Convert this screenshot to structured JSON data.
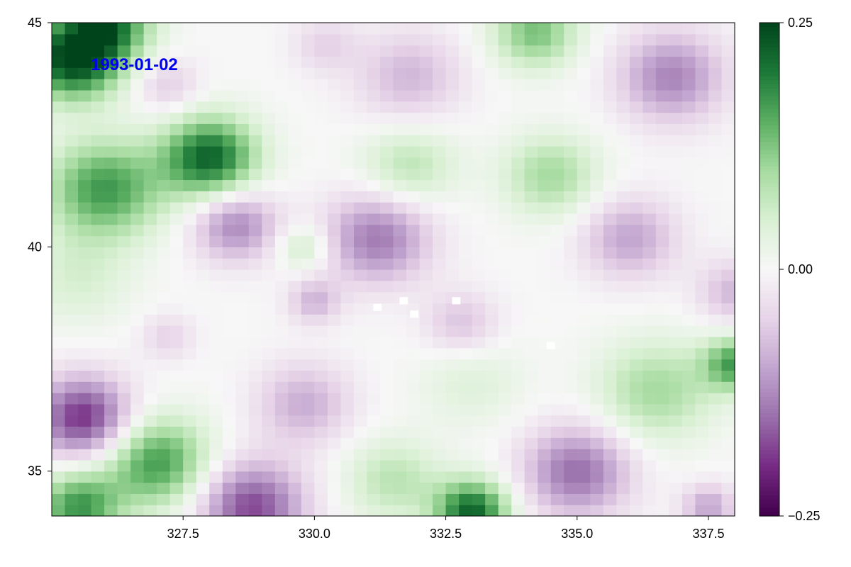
{
  "chart_data": {
    "type": "heatmap",
    "title": "",
    "annotation": "1993-01-02",
    "annotation_color": "#0000ee",
    "xlabel": "",
    "ylabel": "",
    "xlim": [
      325.0,
      338.0
    ],
    "ylim": [
      34.0,
      45.0
    ],
    "xticks": [
      327.5,
      330.0,
      332.5,
      335.0,
      337.5
    ],
    "xtick_labels": [
      "327.5",
      "330.0",
      "332.5",
      "335.0",
      "337.5"
    ],
    "yticks": [
      35,
      40,
      45
    ],
    "ytick_labels": [
      "35",
      "40",
      "45"
    ],
    "colorbar": {
      "colormap": "PRGn",
      "range": [
        -0.25,
        0.25
      ],
      "ticks": [
        -0.25,
        0.0,
        0.25
      ],
      "tick_labels": [
        "−0.25",
        "0.00",
        "0.25"
      ]
    },
    "grid_resolution_deg": 0.25,
    "missing_color": "#ffffff",
    "anomaly_features": [
      {
        "lon": 325.4,
        "lat": 44.2,
        "value": 0.25,
        "r": 0.9
      },
      {
        "lon": 326.1,
        "lat": 45.0,
        "value": 0.18,
        "r": 0.8
      },
      {
        "lon": 327.2,
        "lat": 43.6,
        "value": -0.06,
        "r": 0.6
      },
      {
        "lon": 328.0,
        "lat": 42.0,
        "value": 0.22,
        "r": 0.9
      },
      {
        "lon": 326.0,
        "lat": 41.3,
        "value": 0.17,
        "r": 1.1
      },
      {
        "lon": 325.5,
        "lat": 39.3,
        "value": 0.05,
        "r": 1.0
      },
      {
        "lon": 328.5,
        "lat": 40.5,
        "value": -0.13,
        "r": 0.8
      },
      {
        "lon": 329.8,
        "lat": 40.0,
        "value": 0.07,
        "r": 0.5
      },
      {
        "lon": 331.2,
        "lat": 40.2,
        "value": -0.14,
        "r": 1.0
      },
      {
        "lon": 331.8,
        "lat": 43.8,
        "value": -0.08,
        "r": 1.0
      },
      {
        "lon": 330.2,
        "lat": 44.5,
        "value": -0.05,
        "r": 0.6
      },
      {
        "lon": 331.8,
        "lat": 41.8,
        "value": 0.08,
        "r": 0.9
      },
      {
        "lon": 334.2,
        "lat": 44.8,
        "value": 0.13,
        "r": 0.8
      },
      {
        "lon": 336.8,
        "lat": 43.8,
        "value": -0.13,
        "r": 1.0
      },
      {
        "lon": 334.5,
        "lat": 41.6,
        "value": 0.1,
        "r": 0.9
      },
      {
        "lon": 336.0,
        "lat": 40.2,
        "value": -0.1,
        "r": 0.9
      },
      {
        "lon": 338.0,
        "lat": 39.0,
        "value": -0.08,
        "r": 0.7
      },
      {
        "lon": 330.0,
        "lat": 38.8,
        "value": -0.08,
        "r": 0.5
      },
      {
        "lon": 332.8,
        "lat": 38.3,
        "value": -0.07,
        "r": 0.7
      },
      {
        "lon": 327.2,
        "lat": 38.0,
        "value": -0.05,
        "r": 0.5
      },
      {
        "lon": 325.6,
        "lat": 36.2,
        "value": -0.2,
        "r": 0.9
      },
      {
        "lon": 327.0,
        "lat": 35.2,
        "value": 0.17,
        "r": 1.0
      },
      {
        "lon": 325.5,
        "lat": 34.2,
        "value": 0.17,
        "r": 0.8
      },
      {
        "lon": 328.8,
        "lat": 34.2,
        "value": -0.18,
        "r": 1.0
      },
      {
        "lon": 329.8,
        "lat": 36.5,
        "value": -0.09,
        "r": 0.9
      },
      {
        "lon": 331.5,
        "lat": 34.8,
        "value": 0.08,
        "r": 0.9
      },
      {
        "lon": 333.0,
        "lat": 34.1,
        "value": 0.22,
        "r": 0.7
      },
      {
        "lon": 335.0,
        "lat": 35.0,
        "value": -0.15,
        "r": 1.0
      },
      {
        "lon": 336.5,
        "lat": 36.8,
        "value": 0.1,
        "r": 1.1
      },
      {
        "lon": 338.0,
        "lat": 37.4,
        "value": 0.16,
        "r": 0.6
      },
      {
        "lon": 337.5,
        "lat": 34.2,
        "value": -0.1,
        "r": 0.5
      },
      {
        "lon": 333.0,
        "lat": 37.0,
        "value": 0.04,
        "r": 1.0
      }
    ],
    "missing_cells": [
      {
        "lon": 331.2,
        "lat": 38.65
      },
      {
        "lon": 331.7,
        "lat": 38.8
      },
      {
        "lon": 331.9,
        "lat": 38.5
      },
      {
        "lon": 332.7,
        "lat": 38.8
      },
      {
        "lon": 334.5,
        "lat": 37.8
      }
    ]
  }
}
